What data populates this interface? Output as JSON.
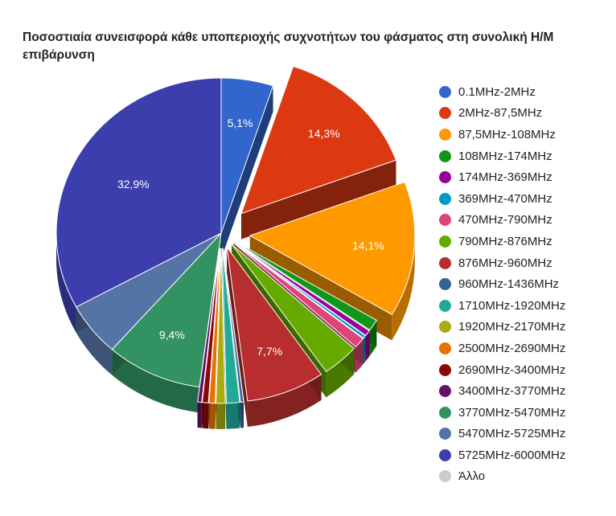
{
  "chart_data": {
    "type": "pie",
    "title": "Ποσοστιαία συνεισφορά κάθε υποπεριοχής συχνοτήτων του φάσματος στη συνολική Η/Μ επιβάρυνση",
    "legend_position": "right",
    "slices": [
      {
        "name": "0.1MHz-2MHz",
        "value": 5.1,
        "label": "5,1%",
        "color": "#3366cc"
      },
      {
        "name": "2MHz-87,5MHz",
        "value": 14.3,
        "label": "14,3%",
        "color": "#dc3912"
      },
      {
        "name": "87,5MHz-108MHz",
        "value": 14.1,
        "label": "14,1%",
        "color": "#ff9900"
      },
      {
        "name": "108MHz-174MHz",
        "value": 1.2,
        "label": "",
        "color": "#109618"
      },
      {
        "name": "174MHz-369MHz",
        "value": 0.6,
        "label": "",
        "color": "#990099"
      },
      {
        "name": "369MHz-470MHz",
        "value": 0.3,
        "label": "",
        "color": "#0099c6"
      },
      {
        "name": "470MHz-790MHz",
        "value": 1.1,
        "label": "",
        "color": "#dd4477"
      },
      {
        "name": "790MHz-876MHz",
        "value": 3.6,
        "label": "",
        "color": "#66aa00"
      },
      {
        "name": "876MHz-960MHz",
        "value": 7.7,
        "label": "7,7%",
        "color": "#b82e2e"
      },
      {
        "name": "960MHz-1436MHz",
        "value": 0.3,
        "label": "",
        "color": "#316395"
      },
      {
        "name": "1710MHz-1920MHz",
        "value": 1.3,
        "label": "",
        "color": "#22aa99"
      },
      {
        "name": "1920MHz-2170MHz",
        "value": 0.9,
        "label": "",
        "color": "#aaaa11"
      },
      {
        "name": "2500MHz-2690MHz",
        "value": 0.6,
        "label": "",
        "color": "#e67300"
      },
      {
        "name": "2690MHz-3400MHz",
        "value": 0.6,
        "label": "",
        "color": "#8b0707"
      },
      {
        "name": "3400MHz-3770MHz",
        "value": 0.4,
        "label": "",
        "color": "#651067"
      },
      {
        "name": "3770MHz-5470MHz",
        "value": 9.4,
        "label": "9,4%",
        "color": "#329262"
      },
      {
        "name": "5470MHz-5725MHz",
        "value": 5.6,
        "label": "",
        "color": "#5574a6"
      },
      {
        "name": "5725MHz-6000MHz",
        "value": 32.9,
        "label": "32,9%",
        "color": "#3b3eac"
      },
      {
        "name": "Άλλο",
        "value": 0.0,
        "label": "",
        "color": "#cccccc"
      }
    ]
  }
}
